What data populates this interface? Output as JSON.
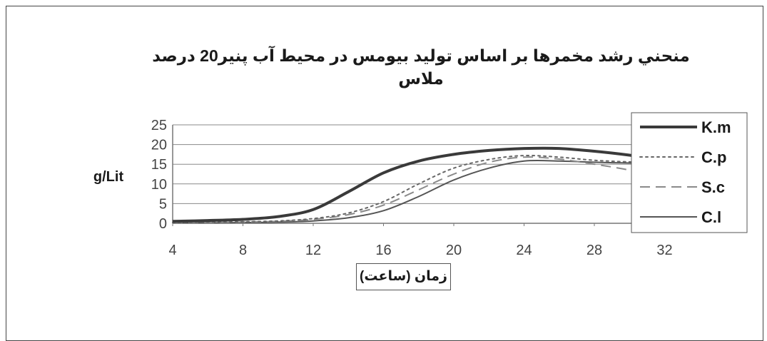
{
  "chart_data": {
    "type": "line",
    "title": "منحني رشد مخمرها بر اساس توليد بيومس در محيط آب پنير20 درصد ملاس",
    "xlabel": "زمان (ساعت)",
    "ylabel": "g/Lit",
    "x": [
      4,
      6,
      8,
      10,
      12,
      14,
      16,
      18,
      20,
      22,
      24,
      26,
      28,
      30,
      32
    ],
    "xticks": [
      4,
      8,
      12,
      16,
      20,
      24,
      28,
      32
    ],
    "yticks": [
      0,
      5,
      10,
      15,
      20,
      25
    ],
    "xlim": [
      4,
      36
    ],
    "ylim": [
      0,
      25
    ],
    "grid": "horizontal",
    "legend_position": "right",
    "series": [
      {
        "name": "K.m",
        "color": "#3a3a3a",
        "dash": "solid",
        "width": 4,
        "values": [
          0.5,
          0.7,
          1.0,
          1.7,
          3.5,
          8.0,
          12.8,
          15.8,
          17.5,
          18.5,
          19.0,
          19.0,
          18.3,
          17.3,
          16.0
        ]
      },
      {
        "name": "C.p",
        "color": "#666666",
        "dash": "dotted",
        "width": 2,
        "values": [
          0.2,
          0.3,
          0.4,
          0.6,
          1.2,
          2.6,
          5.5,
          10.0,
          14.0,
          16.2,
          17.2,
          16.8,
          16.0,
          15.6,
          15.5
        ]
      },
      {
        "name": "S.c",
        "color": "#8a8a8a",
        "dash": "dashed",
        "width": 2,
        "values": [
          0.2,
          0.2,
          0.3,
          0.5,
          1.0,
          2.2,
          4.6,
          8.5,
          12.5,
          15.5,
          16.8,
          16.3,
          15.0,
          13.5,
          11.3
        ]
      },
      {
        "name": "C.l",
        "color": "#555555",
        "dash": "solid",
        "width": 2,
        "values": [
          0.1,
          0.1,
          0.2,
          0.3,
          0.6,
          1.4,
          3.2,
          6.8,
          11.0,
          14.0,
          15.8,
          15.8,
          15.5,
          15.3,
          15.2
        ]
      }
    ]
  }
}
